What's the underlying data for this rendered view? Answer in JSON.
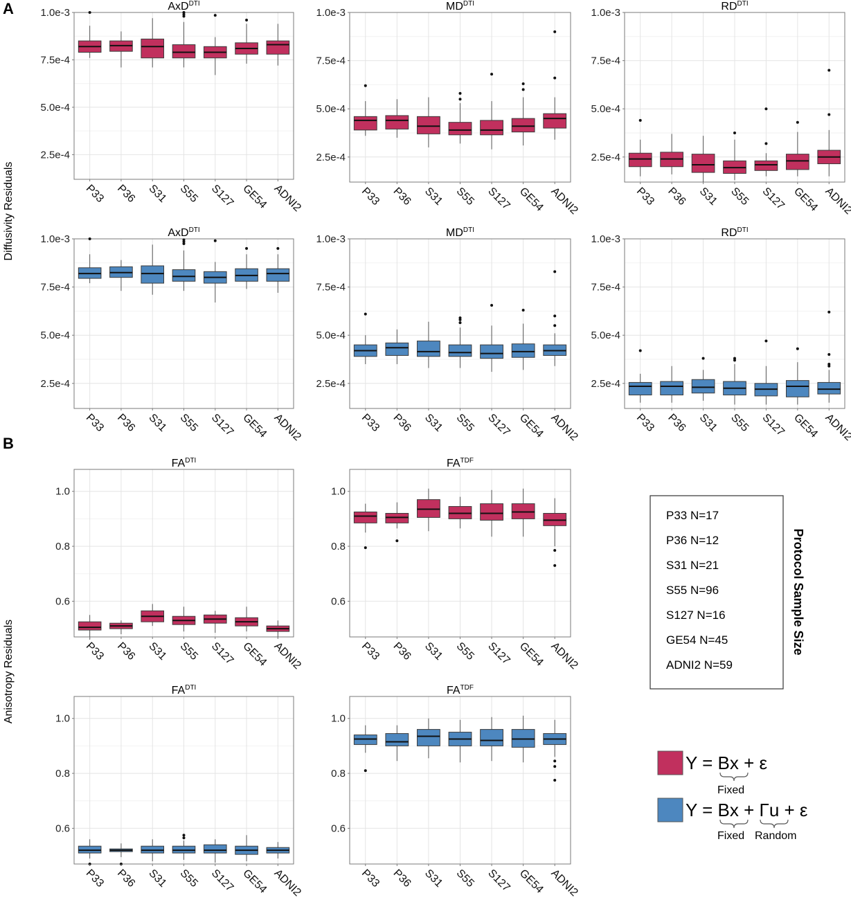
{
  "panel_labels": {
    "a": "A",
    "b": "B"
  },
  "y_axis_labels": {
    "diffusivity": "Diffusivity Residuals",
    "anisotropy": "Anisotropy Residuals"
  },
  "colors": {
    "fixed": "#c1305e",
    "random": "#4d87bf"
  },
  "categories": [
    "P33",
    "P36",
    "S31",
    "S55",
    "S127",
    "GE54",
    "ADNI2"
  ],
  "legend": {
    "title": "Protocol Sample Size",
    "items": [
      "P33 N=17",
      "P36 N=12",
      "S31 N=21",
      "S55 N=96",
      "S127 N=16",
      "GE54 N=45",
      "ADNI2 N=59"
    ]
  },
  "models": {
    "fixed": {
      "equation": "Y = Bx + ε",
      "eq_parts": [
        "Y = ",
        "Bx",
        " + ε"
      ],
      "label": "Fixed"
    },
    "random": {
      "equation": "Y = Bx + Γu + ε",
      "eq_parts": [
        "Y = ",
        "Bx",
        " + ",
        "Γu",
        " + ε"
      ],
      "fixed_label": "Fixed",
      "random_label": "Random"
    }
  },
  "chart_data": [
    {
      "id": "axd-fixed",
      "type": "box",
      "title": "AxD",
      "title_sup": "DTI",
      "model": "fixed",
      "ylim": [
        0.00012,
        0.001
      ],
      "yticks": [
        0.00025,
        0.0005,
        0.00075,
        0.001
      ],
      "ytick_labels": [
        "2.5e-4",
        "5.0e-4",
        "7.5e-4",
        "1.0e-3"
      ],
      "boxes": [
        {
          "min": 0.00076,
          "q1": 0.00079,
          "median": 0.00082,
          "q3": 0.00085,
          "max": 0.00093,
          "outliers": [
            0.001
          ]
        },
        {
          "min": 0.00071,
          "q1": 0.000795,
          "median": 0.000825,
          "q3": 0.00085,
          "max": 0.0009,
          "outliers": []
        },
        {
          "min": 0.00071,
          "q1": 0.00076,
          "median": 0.00082,
          "q3": 0.00086,
          "max": 0.00097,
          "outliers": []
        },
        {
          "min": 0.00071,
          "q1": 0.00076,
          "median": 0.00079,
          "q3": 0.00083,
          "max": 0.00095,
          "outliers": [
            0.00098,
            0.00099,
            0.001
          ]
        },
        {
          "min": 0.00067,
          "q1": 0.00076,
          "median": 0.00079,
          "q3": 0.00082,
          "max": 0.00087,
          "outliers": [
            0.000985
          ]
        },
        {
          "min": 0.00073,
          "q1": 0.00078,
          "median": 0.00081,
          "q3": 0.00084,
          "max": 0.00094,
          "outliers": [
            0.00096
          ]
        },
        {
          "min": 0.00072,
          "q1": 0.00078,
          "median": 0.00083,
          "q3": 0.00085,
          "max": 0.00094,
          "outliers": []
        }
      ]
    },
    {
      "id": "md-fixed",
      "type": "box",
      "title": "MD",
      "title_sup": "DTI",
      "model": "fixed",
      "ylim": [
        0.00012,
        0.001
      ],
      "yticks": [
        0.00025,
        0.0005,
        0.00075,
        0.001
      ],
      "ytick_labels": [
        "2.5e-4",
        "5.0e-4",
        "7.5e-4",
        "1.0e-3"
      ],
      "boxes": [
        {
          "min": 0.00036,
          "q1": 0.00039,
          "median": 0.00044,
          "q3": 0.00046,
          "max": 0.00054,
          "outliers": [
            0.00062
          ]
        },
        {
          "min": 0.00035,
          "q1": 0.000395,
          "median": 0.00044,
          "q3": 0.000465,
          "max": 0.00055,
          "outliers": []
        },
        {
          "min": 0.0003,
          "q1": 0.00037,
          "median": 0.00041,
          "q3": 0.00046,
          "max": 0.00056,
          "outliers": []
        },
        {
          "min": 0.00032,
          "q1": 0.000365,
          "median": 0.00039,
          "q3": 0.00043,
          "max": 0.00053,
          "outliers": [
            0.00055,
            0.00058
          ]
        },
        {
          "min": 0.00029,
          "q1": 0.000365,
          "median": 0.00039,
          "q3": 0.00044,
          "max": 0.00054,
          "outliers": [
            0.00068
          ]
        },
        {
          "min": 0.00031,
          "q1": 0.00038,
          "median": 0.00041,
          "q3": 0.00045,
          "max": 0.00056,
          "outliers": [
            0.0006,
            0.00063
          ]
        },
        {
          "min": 0.00034,
          "q1": 0.0004,
          "median": 0.00045,
          "q3": 0.000475,
          "max": 0.00056,
          "outliers": [
            0.00066,
            0.0009
          ]
        }
      ]
    },
    {
      "id": "rd-fixed",
      "type": "box",
      "title": "RD",
      "title_sup": "DTI",
      "model": "fixed",
      "ylim": [
        0.00012,
        0.001
      ],
      "yticks": [
        0.00025,
        0.0005,
        0.00075,
        0.001
      ],
      "ytick_labels": [
        "2.5e-4",
        "5.0e-4",
        "7.5e-4",
        "1.0e-3"
      ],
      "boxes": [
        {
          "min": 0.00015,
          "q1": 0.0002,
          "median": 0.00024,
          "q3": 0.00027,
          "max": 0.00034,
          "outliers": [
            0.00044
          ]
        },
        {
          "min": 0.00016,
          "q1": 0.0002,
          "median": 0.00024,
          "q3": 0.000275,
          "max": 0.00037,
          "outliers": []
        },
        {
          "min": 0.00012,
          "q1": 0.00017,
          "median": 0.00021,
          "q3": 0.000265,
          "max": 0.00036,
          "outliers": []
        },
        {
          "min": 0.00013,
          "q1": 0.000165,
          "median": 0.000195,
          "q3": 0.00023,
          "max": 0.00034,
          "outliers": [
            0.000375
          ]
        },
        {
          "min": 0.00015,
          "q1": 0.00018,
          "median": 0.00021,
          "q3": 0.00023,
          "max": 0.00027,
          "outliers": [
            0.00032,
            0.0005
          ]
        },
        {
          "min": 0.00015,
          "q1": 0.000185,
          "median": 0.00023,
          "q3": 0.000265,
          "max": 0.00038,
          "outliers": [
            0.00043
          ]
        },
        {
          "min": 0.00015,
          "q1": 0.000215,
          "median": 0.00025,
          "q3": 0.000285,
          "max": 0.00039,
          "outliers": [
            0.00047,
            0.0007
          ]
        }
      ]
    },
    {
      "id": "axd-random",
      "type": "box",
      "title": "AxD",
      "title_sup": "DTI",
      "model": "random",
      "ylim": [
        0.00012,
        0.001
      ],
      "yticks": [
        0.00025,
        0.0005,
        0.00075,
        0.001
      ],
      "ytick_labels": [
        "2.5e-4",
        "5.0e-4",
        "7.5e-4",
        "1.0e-3"
      ],
      "boxes": [
        {
          "min": 0.00077,
          "q1": 0.000795,
          "median": 0.00082,
          "q3": 0.00085,
          "max": 0.00092,
          "outliers": [
            0.001
          ]
        },
        {
          "min": 0.00073,
          "q1": 0.0008,
          "median": 0.000825,
          "q3": 0.000855,
          "max": 0.00089,
          "outliers": []
        },
        {
          "min": 0.00071,
          "q1": 0.00077,
          "median": 0.00082,
          "q3": 0.00086,
          "max": 0.00097,
          "outliers": []
        },
        {
          "min": 0.00073,
          "q1": 0.00078,
          "median": 0.000805,
          "q3": 0.00084,
          "max": 0.00094,
          "outliers": [
            0.000975,
            0.000985,
            0.000995
          ]
        },
        {
          "min": 0.00067,
          "q1": 0.00077,
          "median": 0.0008,
          "q3": 0.00083,
          "max": 0.00088,
          "outliers": [
            0.00099
          ]
        },
        {
          "min": 0.00074,
          "q1": 0.00078,
          "median": 0.00081,
          "q3": 0.000845,
          "max": 0.00092,
          "outliers": [
            0.00095
          ]
        },
        {
          "min": 0.00072,
          "q1": 0.00078,
          "median": 0.00082,
          "q3": 0.000845,
          "max": 0.00092,
          "outliers": [
            0.00095
          ]
        }
      ]
    },
    {
      "id": "md-random",
      "type": "box",
      "title": "MD",
      "title_sup": "DTI",
      "model": "random",
      "ylim": [
        0.00012,
        0.001
      ],
      "yticks": [
        0.00025,
        0.0005,
        0.00075,
        0.001
      ],
      "ytick_labels": [
        "2.5e-4",
        "5.0e-4",
        "7.5e-4",
        "1.0e-3"
      ],
      "boxes": [
        {
          "min": 0.00035,
          "q1": 0.00039,
          "median": 0.00042,
          "q3": 0.00045,
          "max": 0.0005,
          "outliers": [
            0.00061
          ]
        },
        {
          "min": 0.00035,
          "q1": 0.000395,
          "median": 0.000435,
          "q3": 0.00046,
          "max": 0.00053,
          "outliers": []
        },
        {
          "min": 0.00033,
          "q1": 0.00039,
          "median": 0.000415,
          "q3": 0.00047,
          "max": 0.00057,
          "outliers": []
        },
        {
          "min": 0.00033,
          "q1": 0.00039,
          "median": 0.00041,
          "q3": 0.00045,
          "max": 0.00054,
          "outliers": [
            0.000565,
            0.00058,
            0.00059
          ]
        },
        {
          "min": 0.00031,
          "q1": 0.00038,
          "median": 0.000405,
          "q3": 0.00045,
          "max": 0.00055,
          "outliers": [
            0.000655
          ]
        },
        {
          "min": 0.00032,
          "q1": 0.000385,
          "median": 0.000415,
          "q3": 0.000455,
          "max": 0.00056,
          "outliers": [
            0.00063
          ]
        },
        {
          "min": 0.00034,
          "q1": 0.000395,
          "median": 0.00042,
          "q3": 0.00045,
          "max": 0.00051,
          "outliers": [
            0.00055,
            0.0006,
            0.00083
          ]
        }
      ]
    },
    {
      "id": "rd-random",
      "type": "box",
      "title": "RD",
      "title_sup": "DTI",
      "model": "random",
      "ylim": [
        0.00012,
        0.001
      ],
      "yticks": [
        0.00025,
        0.0005,
        0.00075,
        0.001
      ],
      "ytick_labels": [
        "2.5e-4",
        "5.0e-4",
        "7.5e-4",
        "1.0e-3"
      ],
      "boxes": [
        {
          "min": 0.00015,
          "q1": 0.00019,
          "median": 0.000235,
          "q3": 0.000255,
          "max": 0.0003,
          "outliers": [
            0.00042
          ]
        },
        {
          "min": 0.00015,
          "q1": 0.00019,
          "median": 0.000235,
          "q3": 0.00026,
          "max": 0.00034,
          "outliers": []
        },
        {
          "min": 0.00016,
          "q1": 0.0002,
          "median": 0.00023,
          "q3": 0.00027,
          "max": 0.00032,
          "outliers": [
            0.00038
          ]
        },
        {
          "min": 0.00014,
          "q1": 0.00019,
          "median": 0.000225,
          "q3": 0.00026,
          "max": 0.00035,
          "outliers": [
            0.00037,
            0.00038
          ]
        },
        {
          "min": 0.00014,
          "q1": 0.000185,
          "median": 0.00022,
          "q3": 0.00025,
          "max": 0.00034,
          "outliers": [
            0.00047
          ]
        },
        {
          "min": 0.00014,
          "q1": 0.00018,
          "median": 0.000235,
          "q3": 0.000265,
          "max": 0.00036,
          "outliers": [
            0.00043
          ]
        },
        {
          "min": 0.00015,
          "q1": 0.000195,
          "median": 0.00022,
          "q3": 0.000255,
          "max": 0.00032,
          "outliers": [
            0.00034,
            0.00035,
            0.0004,
            0.00062
          ]
        }
      ]
    },
    {
      "id": "fa-dti-fixed",
      "type": "box",
      "title": "FA",
      "title_sup": "DTI",
      "model": "fixed",
      "ylim": [
        0.47,
        1.08
      ],
      "yticks": [
        0.6,
        0.8,
        1.0
      ],
      "ytick_labels": [
        "0.6",
        "0.8",
        "1.0"
      ],
      "boxes": [
        {
          "min": 0.46,
          "q1": 0.495,
          "median": 0.505,
          "q3": 0.525,
          "max": 0.55,
          "outliers": []
        },
        {
          "min": 0.48,
          "q1": 0.5,
          "median": 0.51,
          "q3": 0.52,
          "max": 0.53,
          "outliers": []
        },
        {
          "min": 0.51,
          "q1": 0.525,
          "median": 0.545,
          "q3": 0.565,
          "max": 0.59,
          "outliers": []
        },
        {
          "min": 0.49,
          "q1": 0.515,
          "median": 0.53,
          "q3": 0.545,
          "max": 0.58,
          "outliers": []
        },
        {
          "min": 0.485,
          "q1": 0.52,
          "median": 0.535,
          "q3": 0.55,
          "max": 0.565,
          "outliers": []
        },
        {
          "min": 0.49,
          "q1": 0.51,
          "median": 0.525,
          "q3": 0.54,
          "max": 0.58,
          "outliers": []
        },
        {
          "min": 0.465,
          "q1": 0.49,
          "median": 0.5,
          "q3": 0.51,
          "max": 0.53,
          "outliers": []
        }
      ]
    },
    {
      "id": "fa-tdf-fixed",
      "type": "box",
      "title": "FA",
      "title_sup": "TDF",
      "model": "fixed",
      "ylim": [
        0.47,
        1.08
      ],
      "yticks": [
        0.6,
        0.8,
        1.0
      ],
      "ytick_labels": [
        "0.6",
        "0.8",
        "1.0"
      ],
      "boxes": [
        {
          "min": 0.85,
          "q1": 0.885,
          "median": 0.91,
          "q3": 0.925,
          "max": 0.955,
          "outliers": [
            0.795
          ]
        },
        {
          "min": 0.865,
          "q1": 0.885,
          "median": 0.905,
          "q3": 0.92,
          "max": 0.96,
          "outliers": [
            0.82
          ]
        },
        {
          "min": 0.855,
          "q1": 0.905,
          "median": 0.935,
          "q3": 0.97,
          "max": 1.01,
          "outliers": []
        },
        {
          "min": 0.865,
          "q1": 0.9,
          "median": 0.92,
          "q3": 0.945,
          "max": 0.98,
          "outliers": []
        },
        {
          "min": 0.835,
          "q1": 0.895,
          "median": 0.92,
          "q3": 0.955,
          "max": 1.005,
          "outliers": []
        },
        {
          "min": 0.835,
          "q1": 0.9,
          "median": 0.925,
          "q3": 0.955,
          "max": 1.01,
          "outliers": []
        },
        {
          "min": 0.8,
          "q1": 0.875,
          "median": 0.895,
          "q3": 0.92,
          "max": 0.975,
          "outliers": [
            0.785,
            0.73
          ]
        }
      ]
    },
    {
      "id": "fa-dti-random",
      "type": "box",
      "title": "FA",
      "title_sup": "DTI",
      "model": "random",
      "ylim": [
        0.47,
        1.08
      ],
      "yticks": [
        0.6,
        0.8,
        1.0
      ],
      "ytick_labels": [
        "0.6",
        "0.8",
        "1.0"
      ],
      "boxes": [
        {
          "min": 0.49,
          "q1": 0.51,
          "median": 0.52,
          "q3": 0.535,
          "max": 0.56,
          "outliers": [
            0.47
          ]
        },
        {
          "min": 0.495,
          "q1": 0.515,
          "median": 0.52,
          "q3": 0.525,
          "max": 0.545,
          "outliers": [
            0.47
          ]
        },
        {
          "min": 0.48,
          "q1": 0.51,
          "median": 0.52,
          "q3": 0.535,
          "max": 0.56,
          "outliers": []
        },
        {
          "min": 0.485,
          "q1": 0.51,
          "median": 0.52,
          "q3": 0.535,
          "max": 0.555,
          "outliers": [
            0.565,
            0.575
          ]
        },
        {
          "min": 0.475,
          "q1": 0.51,
          "median": 0.52,
          "q3": 0.54,
          "max": 0.56,
          "outliers": []
        },
        {
          "min": 0.48,
          "q1": 0.505,
          "median": 0.52,
          "q3": 0.535,
          "max": 0.575,
          "outliers": []
        },
        {
          "min": 0.49,
          "q1": 0.51,
          "median": 0.52,
          "q3": 0.53,
          "max": 0.55,
          "outliers": []
        }
      ]
    },
    {
      "id": "fa-tdf-random",
      "type": "box",
      "title": "FA",
      "title_sup": "TDF",
      "model": "random",
      "ylim": [
        0.47,
        1.08
      ],
      "yticks": [
        0.6,
        0.8,
        1.0
      ],
      "ytick_labels": [
        "0.6",
        "0.8",
        "1.0"
      ],
      "boxes": [
        {
          "min": 0.875,
          "q1": 0.905,
          "median": 0.925,
          "q3": 0.94,
          "max": 0.975,
          "outliers": [
            0.81
          ]
        },
        {
          "min": 0.845,
          "q1": 0.9,
          "median": 0.915,
          "q3": 0.945,
          "max": 0.975,
          "outliers": []
        },
        {
          "min": 0.855,
          "q1": 0.9,
          "median": 0.935,
          "q3": 0.96,
          "max": 1.0,
          "outliers": []
        },
        {
          "min": 0.84,
          "q1": 0.9,
          "median": 0.925,
          "q3": 0.95,
          "max": 0.995,
          "outliers": []
        },
        {
          "min": 0.845,
          "q1": 0.9,
          "median": 0.92,
          "q3": 0.96,
          "max": 1.005,
          "outliers": []
        },
        {
          "min": 0.84,
          "q1": 0.895,
          "median": 0.925,
          "q3": 0.96,
          "max": 1.01,
          "outliers": []
        },
        {
          "min": 0.86,
          "q1": 0.905,
          "median": 0.925,
          "q3": 0.945,
          "max": 0.995,
          "outliers": [
            0.845,
            0.825,
            0.775
          ]
        }
      ]
    }
  ]
}
